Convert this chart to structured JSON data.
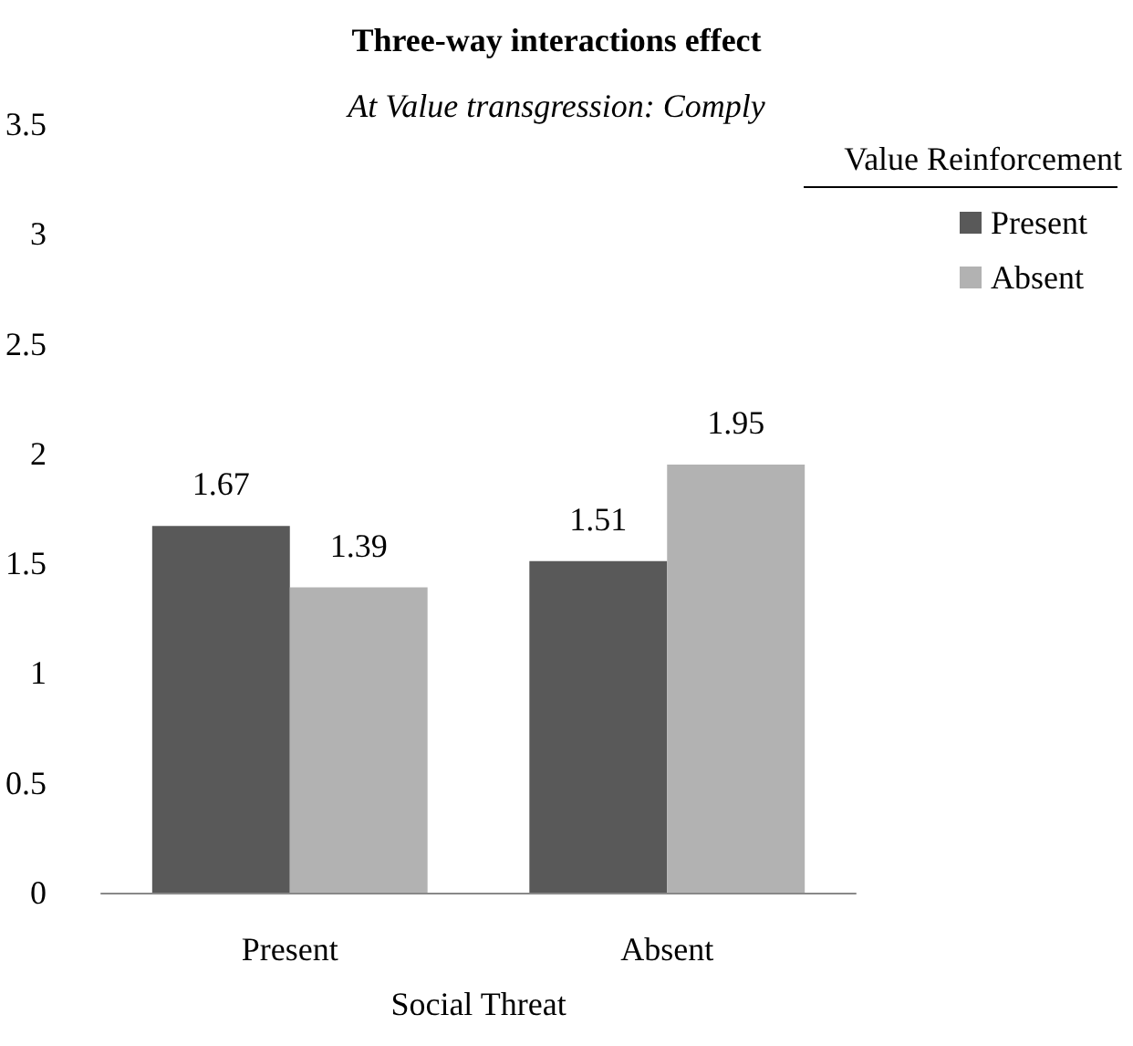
{
  "chart_data": {
    "type": "bar",
    "title": "Three-way interactions effect",
    "subtitle": "At Value transgression: Comply",
    "xlabel": "Social Threat",
    "legend_title": "Value Reinforcement",
    "categories": [
      "Present",
      "Absent"
    ],
    "series": [
      {
        "name": "Present",
        "color": "#595959",
        "values": [
          1.67,
          1.51
        ]
      },
      {
        "name": "Absent",
        "color": "#b2b2b2",
        "values": [
          1.39,
          1.95
        ]
      }
    ],
    "ylim": [
      0,
      3.5
    ],
    "yticks": [
      0,
      0.5,
      1,
      1.5,
      2,
      2.5,
      3,
      3.5
    ],
    "grid": false,
    "legend": "top right",
    "data_labels": true
  }
}
